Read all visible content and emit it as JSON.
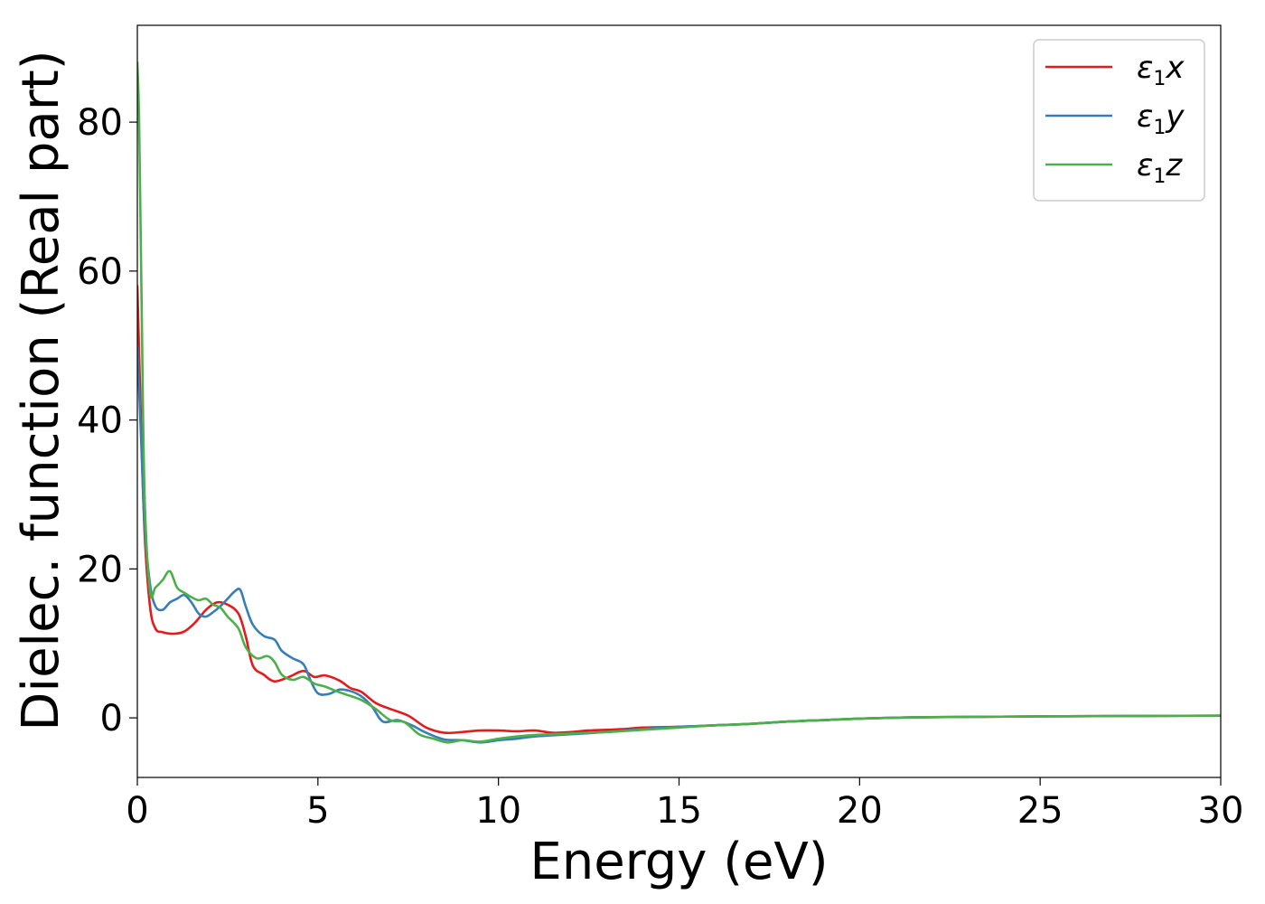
{
  "chart_data": {
    "type": "line",
    "title": "",
    "xlabel": "Energy (eV)",
    "ylabel": "Dielec. function (Real part)",
    "xlim": [
      0,
      30
    ],
    "ylim": [
      -8,
      93
    ],
    "xticks": [
      0,
      5,
      10,
      15,
      20,
      25,
      30
    ],
    "yticks": [
      0,
      20,
      40,
      60,
      80
    ],
    "grid": false,
    "legend_position": "top-right",
    "series": [
      {
        "name": "ε1x",
        "symbol": "ε",
        "subscript": "1",
        "suffix": "x",
        "color": "#e41a1c",
        "points": [
          [
            0,
            58
          ],
          [
            0.1,
            40
          ],
          [
            0.2,
            25
          ],
          [
            0.35,
            15
          ],
          [
            0.5,
            12
          ],
          [
            0.7,
            11.5
          ],
          [
            1.0,
            11.3
          ],
          [
            1.3,
            11.6
          ],
          [
            1.6,
            12.8
          ],
          [
            1.9,
            14.5
          ],
          [
            2.2,
            15.5
          ],
          [
            2.5,
            15.2
          ],
          [
            2.8,
            14
          ],
          [
            3.0,
            11
          ],
          [
            3.2,
            7
          ],
          [
            3.5,
            5.8
          ],
          [
            3.8,
            4.9
          ],
          [
            4.2,
            5.5
          ],
          [
            4.6,
            6.3
          ],
          [
            4.9,
            5.5
          ],
          [
            5.2,
            5.7
          ],
          [
            5.6,
            5
          ],
          [
            5.9,
            4
          ],
          [
            6.2,
            3.5
          ],
          [
            6.6,
            2
          ],
          [
            7.0,
            1.2
          ],
          [
            7.5,
            0.3
          ],
          [
            8.0,
            -1.3
          ],
          [
            8.5,
            -2
          ],
          [
            9.0,
            -1.9
          ],
          [
            9.5,
            -1.7
          ],
          [
            10,
            -1.7
          ],
          [
            10.5,
            -1.8
          ],
          [
            11,
            -1.7
          ],
          [
            11.5,
            -2
          ],
          [
            12,
            -1.9
          ],
          [
            12.5,
            -1.7
          ],
          [
            13,
            -1.6
          ],
          [
            13.5,
            -1.5
          ],
          [
            14,
            -1.3
          ],
          [
            15,
            -1.2
          ],
          [
            16,
            -1.0
          ],
          [
            17,
            -0.8
          ],
          [
            18,
            -0.5
          ],
          [
            19,
            -0.3
          ],
          [
            20,
            -0.1
          ],
          [
            22,
            0.1
          ],
          [
            25,
            0.2
          ],
          [
            30,
            0.3
          ]
        ]
      },
      {
        "name": "ε1y",
        "symbol": "ε",
        "subscript": "1",
        "suffix": "y",
        "color": "#377eb8",
        "points": [
          [
            0,
            50
          ],
          [
            0.1,
            38
          ],
          [
            0.2,
            26
          ],
          [
            0.35,
            18
          ],
          [
            0.5,
            15
          ],
          [
            0.7,
            14.5
          ],
          [
            0.9,
            15.5
          ],
          [
            1.1,
            16
          ],
          [
            1.3,
            16.5
          ],
          [
            1.5,
            15.5
          ],
          [
            1.7,
            14
          ],
          [
            1.9,
            13.6
          ],
          [
            2.1,
            14.2
          ],
          [
            2.3,
            15
          ],
          [
            2.5,
            16
          ],
          [
            2.7,
            17
          ],
          [
            2.85,
            17.2
          ],
          [
            3.0,
            15
          ],
          [
            3.2,
            12.5
          ],
          [
            3.5,
            11
          ],
          [
            3.8,
            10.5
          ],
          [
            4.0,
            9
          ],
          [
            4.3,
            8
          ],
          [
            4.6,
            7.2
          ],
          [
            4.8,
            5
          ],
          [
            5.0,
            3.3
          ],
          [
            5.3,
            3.2
          ],
          [
            5.6,
            3.8
          ],
          [
            5.9,
            3.6
          ],
          [
            6.2,
            2.9
          ],
          [
            6.5,
            1.5
          ],
          [
            6.8,
            -0.5
          ],
          [
            7.2,
            -0.3
          ],
          [
            7.6,
            -1
          ],
          [
            8.0,
            -2
          ],
          [
            8.5,
            -2.9
          ],
          [
            9.0,
            -3
          ],
          [
            9.5,
            -3.3
          ],
          [
            10,
            -3
          ],
          [
            10.5,
            -2.8
          ],
          [
            11,
            -2.5
          ],
          [
            12,
            -2.2
          ],
          [
            13,
            -1.9
          ],
          [
            14,
            -1.5
          ],
          [
            15,
            -1.2
          ],
          [
            16,
            -1.0
          ],
          [
            17,
            -0.8
          ],
          [
            18,
            -0.5
          ],
          [
            19,
            -0.3
          ],
          [
            20,
            -0.1
          ],
          [
            22,
            0.1
          ],
          [
            25,
            0.2
          ],
          [
            30,
            0.3
          ]
        ]
      },
      {
        "name": "ε1z",
        "symbol": "ε",
        "subscript": "1",
        "suffix": "z",
        "color": "#4daf4a",
        "points": [
          [
            0,
            88
          ],
          [
            0.05,
            80
          ],
          [
            0.12,
            55
          ],
          [
            0.2,
            30
          ],
          [
            0.35,
            17
          ],
          [
            0.5,
            17.5
          ],
          [
            0.7,
            18.5
          ],
          [
            0.9,
            19.7
          ],
          [
            1.1,
            17.5
          ],
          [
            1.3,
            16.8
          ],
          [
            1.5,
            16.2
          ],
          [
            1.7,
            15.8
          ],
          [
            1.9,
            16
          ],
          [
            2.1,
            15.2
          ],
          [
            2.3,
            14.8
          ],
          [
            2.5,
            13.6
          ],
          [
            2.8,
            12
          ],
          [
            3.0,
            9.5
          ],
          [
            3.3,
            8
          ],
          [
            3.6,
            8.3
          ],
          [
            3.8,
            7.5
          ],
          [
            4.0,
            5.8
          ],
          [
            4.3,
            5.1
          ],
          [
            4.6,
            5.5
          ],
          [
            4.9,
            4.6
          ],
          [
            5.2,
            4.2
          ],
          [
            5.5,
            3.6
          ],
          [
            5.8,
            3.1
          ],
          [
            6.2,
            2.4
          ],
          [
            6.6,
            1.2
          ],
          [
            7.0,
            -0.3
          ],
          [
            7.4,
            -0.6
          ],
          [
            7.8,
            -2.2
          ],
          [
            8.2,
            -2.8
          ],
          [
            8.6,
            -3.3
          ],
          [
            9.0,
            -3.0
          ],
          [
            9.5,
            -3.2
          ],
          [
            10,
            -2.8
          ],
          [
            10.5,
            -2.5
          ],
          [
            11,
            -2.3
          ],
          [
            12,
            -2.1
          ],
          [
            13,
            -1.9
          ],
          [
            14,
            -1.6
          ],
          [
            15,
            -1.3
          ],
          [
            16,
            -1.0
          ],
          [
            17,
            -0.8
          ],
          [
            18,
            -0.5
          ],
          [
            19,
            -0.3
          ],
          [
            20,
            -0.1
          ],
          [
            22,
            0.1
          ],
          [
            25,
            0.2
          ],
          [
            30,
            0.3
          ]
        ]
      }
    ]
  }
}
